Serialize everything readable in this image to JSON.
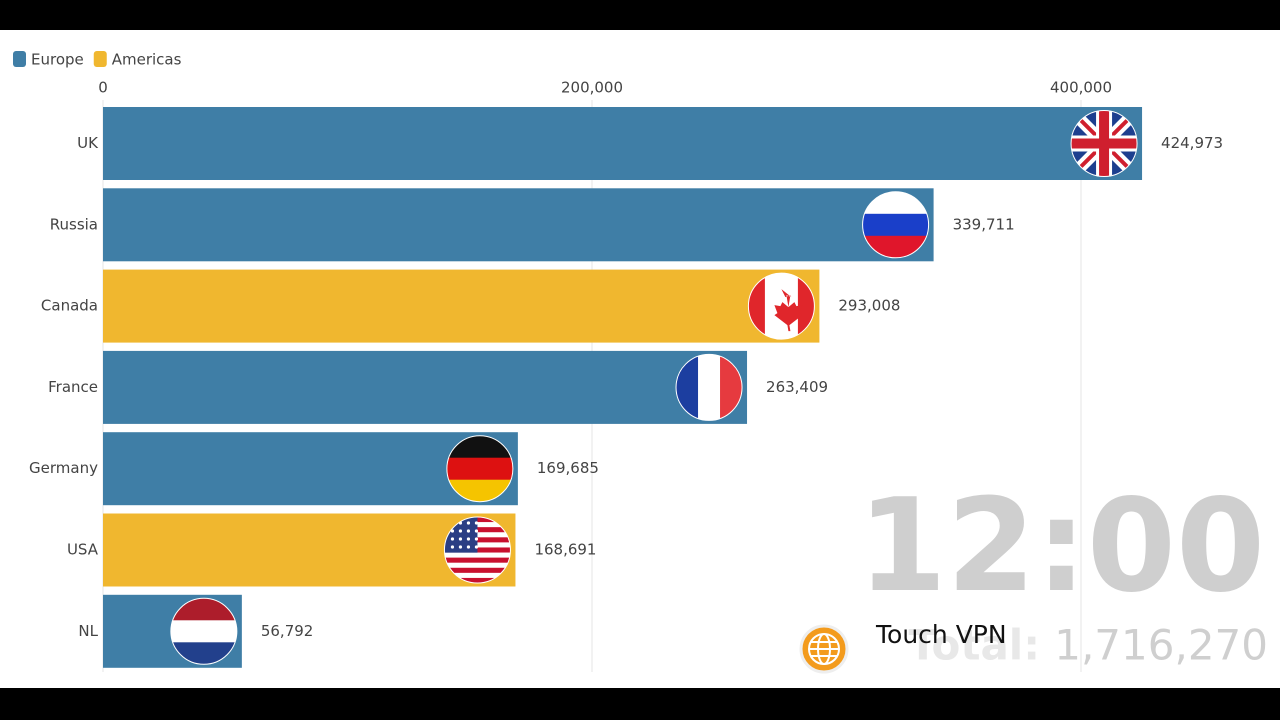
{
  "chart_data": {
    "type": "bar",
    "orientation": "horizontal",
    "categories": [
      "UK",
      "Russia",
      "Canada",
      "France",
      "Germany",
      "USA",
      "NL"
    ],
    "values": [
      424973,
      339711,
      293008,
      263409,
      169685,
      168691,
      56792
    ],
    "value_labels": [
      "424,973",
      "339,711",
      "293,008",
      "263,409",
      "169,685",
      "168,691",
      "56,792"
    ],
    "bar_colors": [
      "#3f7ea6",
      "#3f7ea6",
      "#f0b72f",
      "#3f7ea6",
      "#3f7ea6",
      "#f0b72f",
      "#3f7ea6"
    ],
    "legend": [
      {
        "name": "Europe",
        "color": "#3f7ea6"
      },
      {
        "name": "Americas",
        "color": "#f0b72f"
      }
    ],
    "xlim": [
      0,
      450000
    ],
    "xticks": [
      0,
      {
        "value": 200000,
        "label": "200,000"
      },
      {
        "value": 400000,
        "label": "400,000"
      }
    ],
    "grid": true,
    "date_label": "12:00",
    "total_title": "Total:",
    "total": {
      "value": 1716270,
      "label": "1,716,270"
    },
    "watermark": "Touch VPN"
  }
}
